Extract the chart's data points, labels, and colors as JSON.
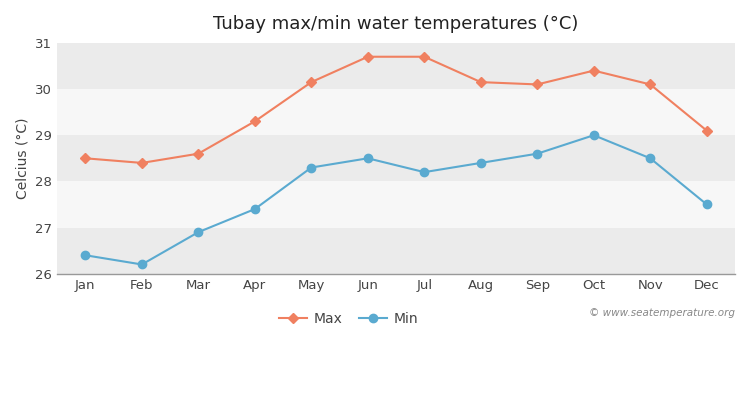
{
  "title": "Tubay max/min water temperatures (°C)",
  "ylabel": "Celcius (°C)",
  "months": [
    "Jan",
    "Feb",
    "Mar",
    "Apr",
    "May",
    "Jun",
    "Jul",
    "Aug",
    "Sep",
    "Oct",
    "Nov",
    "Dec"
  ],
  "max_temps": [
    28.5,
    28.4,
    28.6,
    29.3,
    30.15,
    30.7,
    30.7,
    30.15,
    30.1,
    30.4,
    30.1,
    29.1
  ],
  "min_temps": [
    26.4,
    26.2,
    26.9,
    27.4,
    28.3,
    28.5,
    28.2,
    28.4,
    28.6,
    29.0,
    28.5,
    27.5
  ],
  "max_color": "#f08060",
  "min_color": "#5aaad0",
  "ylim_min": 26,
  "ylim_max": 31,
  "yticks": [
    26,
    27,
    28,
    29,
    30,
    31
  ],
  "background_color": "#ffffff",
  "plot_bg_color": "#ffffff",
  "band_colors_even": "#ebebeb",
  "band_colors_odd": "#f7f7f7",
  "watermark": "© www.seatemperature.org",
  "title_fontsize": 13,
  "axis_label_fontsize": 10,
  "tick_fontsize": 9.5
}
